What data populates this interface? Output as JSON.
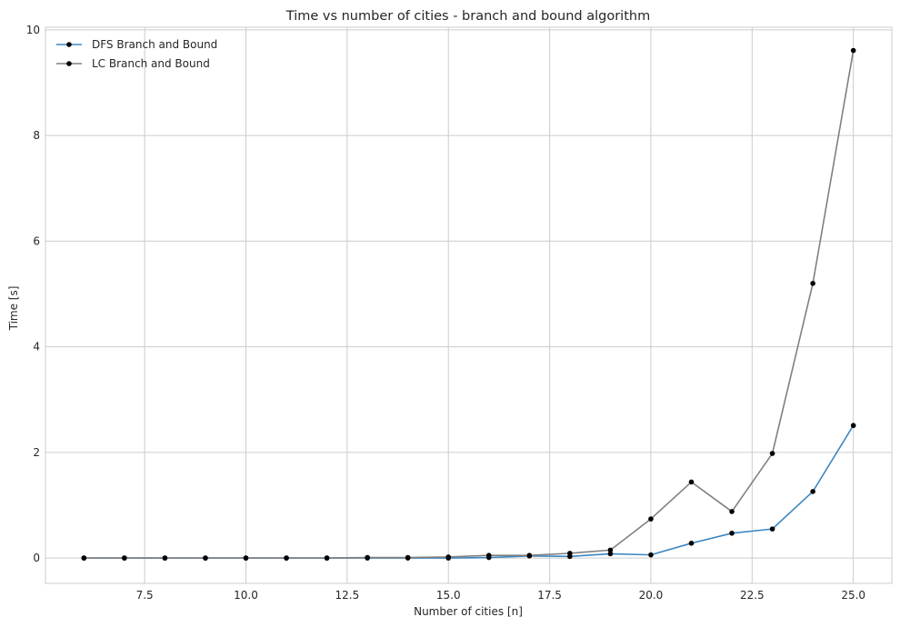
{
  "chart_data": {
    "type": "line",
    "title": "Time vs number of cities - branch and bound algorithm",
    "xlabel": "Number of cities [n]",
    "ylabel": "Time [s]",
    "xlim": [
      5.05,
      25.95
    ],
    "ylim": [
      -0.48,
      10.05
    ],
    "xticks": [
      7.5,
      10.0,
      12.5,
      15.0,
      17.5,
      20.0,
      22.5,
      25.0
    ],
    "xtick_labels": [
      "7.5",
      "10.0",
      "12.5",
      "15.0",
      "17.5",
      "20.0",
      "22.5",
      "25.0"
    ],
    "yticks": [
      0,
      2,
      4,
      6,
      8,
      10
    ],
    "ytick_labels": [
      "0",
      "2",
      "4",
      "6",
      "8",
      "10"
    ],
    "grid": true,
    "legend_position": "top-left",
    "marker_color": "#000000",
    "x": [
      6,
      7,
      8,
      9,
      10,
      11,
      12,
      13,
      14,
      15,
      16,
      17,
      18,
      19,
      20,
      21,
      22,
      23,
      24,
      25
    ],
    "series": [
      {
        "name": "DFS Branch and Bound",
        "color": "#3d87c2",
        "values": [
          0.0,
          0.0,
          0.0,
          0.0,
          0.0,
          0.0,
          0.0,
          0.0,
          0.0,
          0.0,
          0.01,
          0.04,
          0.03,
          0.08,
          0.06,
          0.28,
          0.47,
          0.55,
          1.26,
          2.51
        ]
      },
      {
        "name": "LC Branch and Bound",
        "color": "#808080",
        "values": [
          0.0,
          0.0,
          0.0,
          0.0,
          0.0,
          0.0,
          0.0,
          0.01,
          0.01,
          0.02,
          0.05,
          0.05,
          0.09,
          0.15,
          0.74,
          1.44,
          0.88,
          1.98,
          5.2,
          9.61
        ]
      }
    ]
  }
}
